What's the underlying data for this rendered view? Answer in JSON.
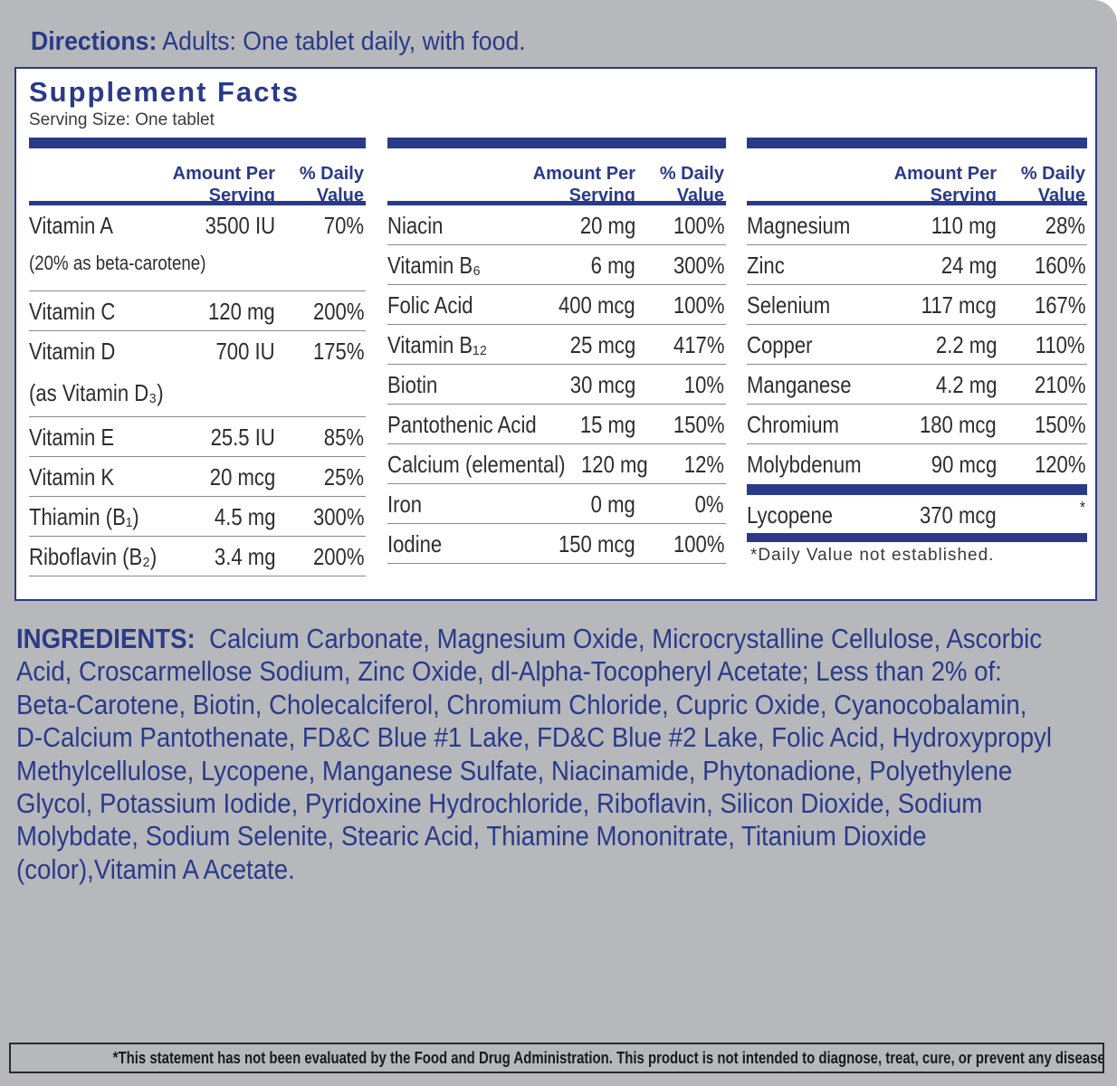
{
  "directions": {
    "label": "Directions:",
    "text": " Adults: One tablet daily, with food."
  },
  "supplement_facts": {
    "title": "Supplement Facts",
    "serving_size": "Serving Size: One tablet",
    "header": {
      "amount": "Amount Per\nServing",
      "daily_value": "% Daily\nValue"
    },
    "columns": [
      {
        "rows": [
          {
            "name": "Vitamin A",
            "amount": "3500 IU",
            "dv": "70%",
            "note": "(20% as beta-carotene)"
          },
          {
            "name": "Vitamin C",
            "amount": "120 mg",
            "dv": "200%"
          },
          {
            "name": "Vitamin D",
            "amount": "700 IU",
            "dv": "175%",
            "note": "(as Vitamin D₃)"
          },
          {
            "name": "Vitamin E",
            "amount": "25.5 IU",
            "dv": "85%"
          },
          {
            "name": "Vitamin K",
            "amount": "20 mcg",
            "dv": "25%"
          },
          {
            "name": "Thiamin (B₁)",
            "amount": "4.5 mg",
            "dv": "300%"
          },
          {
            "name": "Riboflavin (B₂)",
            "amount": "3.4 mg",
            "dv": "200%"
          }
        ]
      },
      {
        "rows": [
          {
            "name": "Niacin",
            "amount": "20 mg",
            "dv": "100%"
          },
          {
            "name": "Vitamin B₆",
            "amount": "6 mg",
            "dv": "300%"
          },
          {
            "name": "Folic Acid",
            "amount": "400 mcg",
            "dv": "100%"
          },
          {
            "name": "Vitamin B₁₂",
            "amount": "25 mcg",
            "dv": "417%"
          },
          {
            "name": "Biotin",
            "amount": "30 mcg",
            "dv": "10%"
          },
          {
            "name": "Pantothenic Acid",
            "amount": "15 mg",
            "dv": "150%"
          },
          {
            "name": "Calcium (elemental)",
            "amount": "120 mg",
            "dv": "12%"
          },
          {
            "name": "Iron",
            "amount": "0 mg",
            "dv": "0%"
          },
          {
            "name": "Iodine",
            "amount": "150 mcg",
            "dv": "100%"
          }
        ]
      },
      {
        "rows": [
          {
            "name": "Magnesium",
            "amount": "110 mg",
            "dv": "28%"
          },
          {
            "name": "Zinc",
            "amount": "24 mg",
            "dv": "160%"
          },
          {
            "name": "Selenium",
            "amount": "117 mcg",
            "dv": "167%"
          },
          {
            "name": "Copper",
            "amount": "2.2 mg",
            "dv": "110%"
          },
          {
            "name": "Manganese",
            "amount": "4.2 mg",
            "dv": "210%"
          },
          {
            "name": "Chromium",
            "amount": "180 mcg",
            "dv": "150%"
          },
          {
            "name": "Molybdenum",
            "amount": "90 mcg",
            "dv": "120%"
          }
        ],
        "extra": {
          "name": "Lycopene",
          "amount": "370 mcg",
          "dv": "*"
        },
        "footnote": "*Daily Value not established."
      }
    ]
  },
  "ingredients": {
    "label": "INGREDIENTS:",
    "lines": [
      "Calcium Carbonate, Magnesium Oxide, Microcrystalline Cellulose, Ascorbic",
      "Acid, Croscarmellose Sodium, Zinc Oxide, dl-Alpha-Tocopheryl Acetate; Less than 2% of:",
      "Beta-Carotene, Biotin, Cholecalciferol, Chromium Chloride, Cupric Oxide, Cyanocobalamin,",
      "D-Calcium Pantothenate, FD&C Blue #1 Lake, FD&C Blue #2 Lake, Folic Acid, Hydroxypropyl",
      "Methylcellulose, Lycopene, Manganese Sulfate, Niacinamide, Phytonadione, Polyethylene",
      "Glycol, Potassium Iodide, Pyridoxine Hydrochloride, Riboflavin, Silicon Dioxide, Sodium",
      "Molybdate, Sodium Selenite, Stearic Acid, Thiamine Mononitrate, Titanium Dioxide",
      "(color),Vitamin A Acetate."
    ]
  },
  "disclaimer": "*This statement has not been evaluated by the Food and Drug Administration. This product is not intended to diagnose, treat, cure, or prevent any disease."
}
